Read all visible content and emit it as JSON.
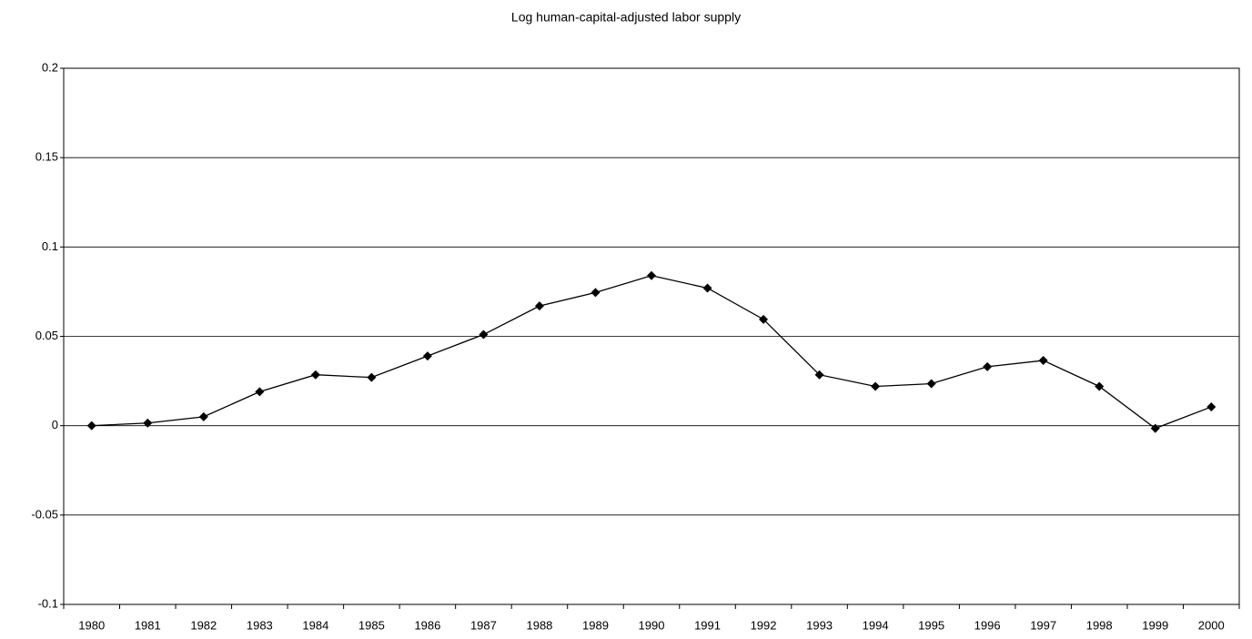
{
  "chart_data": {
    "type": "line",
    "title": "Log human-capital-adjusted labor supply",
    "categories": [
      "1980",
      "1981",
      "1982",
      "1983",
      "1984",
      "1985",
      "1986",
      "1987",
      "1988",
      "1989",
      "1990",
      "1991",
      "1992",
      "1993",
      "1994",
      "1995",
      "1996",
      "1997",
      "1998",
      "1999",
      "2000"
    ],
    "values": [
      0,
      0.0015,
      0.005,
      0.019,
      0.0285,
      0.027,
      0.039,
      0.051,
      0.067,
      0.0745,
      0.084,
      0.077,
      0.0595,
      0.0285,
      0.022,
      0.0235,
      0.033,
      0.0365,
      0.022,
      -0.0015,
      0.0105
    ],
    "color": "#000000",
    "ylim": [
      -0.1,
      0.2
    ],
    "yticks": [
      -0.1,
      -0.05,
      0,
      0.05,
      0.1,
      0.15,
      0.2
    ],
    "grid": true
  }
}
